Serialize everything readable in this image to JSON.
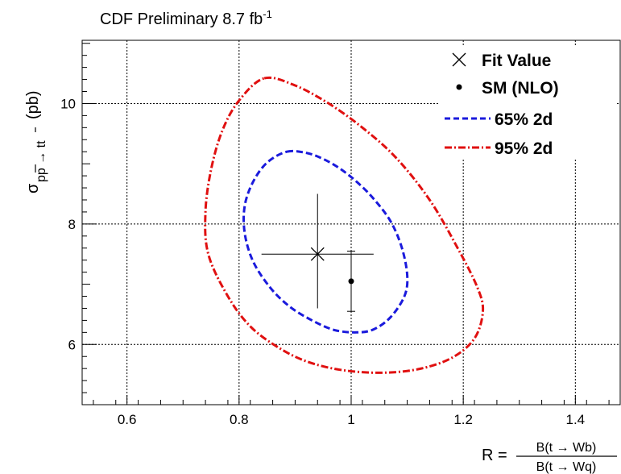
{
  "chart_data": {
    "type": "scatter",
    "title": "CDF Preliminary 8.7 fb",
    "title_superscript": "-1",
    "xlabel": {
      "prefix": "R =",
      "numerator": "B(t → Wb)",
      "denominator": "B(t → Wq)"
    },
    "ylabel": {
      "symbol": "σ",
      "subscript": "pp → tt",
      "unit": "(pb)"
    },
    "xlim": [
      0.52,
      1.48
    ],
    "ylim": [
      5.0,
      11.05
    ],
    "xticks": [
      0.6,
      0.8,
      1.0,
      1.2,
      1.4
    ],
    "xtick_labels": [
      "0.6",
      "0.8",
      "1",
      "1.2",
      "1.4"
    ],
    "yticks": [
      6,
      8,
      10
    ],
    "ytick_labels": [
      "6",
      "8",
      "10"
    ],
    "grid": true,
    "legend_position": "top-right",
    "legend": [
      {
        "label": "Fit Value",
        "marker": "cross"
      },
      {
        "label": "SM (NLO)",
        "marker": "dot"
      },
      {
        "label": "65% 2d",
        "style": "dashed",
        "color": "#1a1adc"
      },
      {
        "label": "95% 2d",
        "style": "dash-dot",
        "color": "#e01010"
      }
    ],
    "fit_value": {
      "x": 0.94,
      "y": 7.5,
      "x_err": [
        0.1,
        0.1
      ],
      "y_err": [
        0.9,
        1.0
      ]
    },
    "sm_nlo": {
      "x": 1.0,
      "y": 7.05,
      "y_err": [
        0.5,
        0.5
      ]
    },
    "series": [
      {
        "name": "65% 2d",
        "color": "#1a1adc",
        "style": "dashed",
        "points": [
          [
            0.885,
            9.2
          ],
          [
            0.92,
            9.18
          ],
          [
            0.95,
            9.08
          ],
          [
            0.98,
            8.92
          ],
          [
            1.01,
            8.7
          ],
          [
            1.04,
            8.42
          ],
          [
            1.07,
            8.05
          ],
          [
            1.09,
            7.62
          ],
          [
            1.1,
            7.15
          ],
          [
            1.095,
            6.8
          ],
          [
            1.07,
            6.45
          ],
          [
            1.04,
            6.25
          ],
          [
            1.01,
            6.2
          ],
          [
            0.97,
            6.24
          ],
          [
            0.93,
            6.4
          ],
          [
            0.89,
            6.63
          ],
          [
            0.855,
            6.95
          ],
          [
            0.825,
            7.38
          ],
          [
            0.81,
            7.85
          ],
          [
            0.81,
            8.3
          ],
          [
            0.825,
            8.7
          ],
          [
            0.85,
            9.02
          ]
        ]
      },
      {
        "name": "95% 2d",
        "color": "#e01010",
        "style": "dash-dot",
        "points": [
          [
            0.845,
            10.42
          ],
          [
            0.9,
            10.3
          ],
          [
            0.96,
            10.0
          ],
          [
            1.02,
            9.6
          ],
          [
            1.08,
            9.1
          ],
          [
            1.14,
            8.4
          ],
          [
            1.19,
            7.6
          ],
          [
            1.225,
            6.95
          ],
          [
            1.235,
            6.55
          ],
          [
            1.22,
            6.1
          ],
          [
            1.18,
            5.78
          ],
          [
            1.12,
            5.59
          ],
          [
            1.05,
            5.53
          ],
          [
            0.98,
            5.58
          ],
          [
            0.92,
            5.72
          ],
          [
            0.87,
            5.95
          ],
          [
            0.82,
            6.3
          ],
          [
            0.78,
            6.8
          ],
          [
            0.745,
            7.5
          ],
          [
            0.74,
            8.2
          ],
          [
            0.75,
            8.9
          ],
          [
            0.77,
            9.55
          ],
          [
            0.8,
            10.05
          ]
        ]
      }
    ]
  }
}
